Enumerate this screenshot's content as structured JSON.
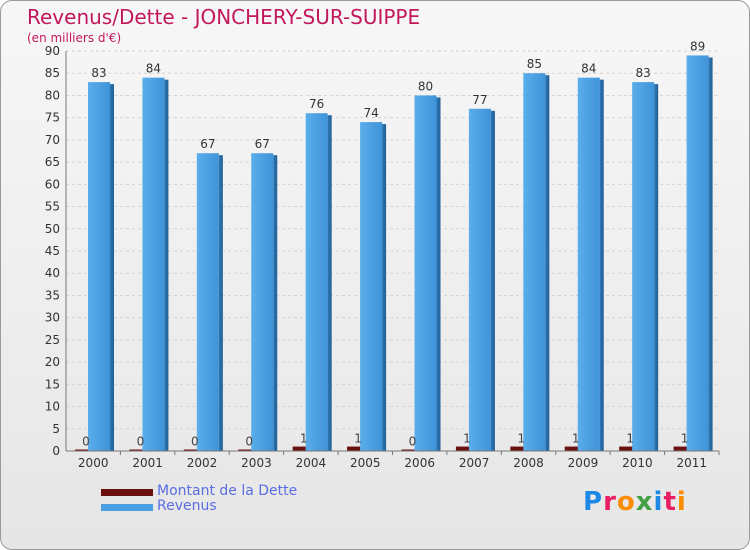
{
  "title": "Revenus/Dette - JONCHERY-SUR-SUIPPE",
  "unit": "(en milliers d'€)",
  "legend": [
    {
      "label": "Montant de la Dette",
      "color": "#6b0f0f"
    },
    {
      "label": "Revenus",
      "color": "#4a9fe0"
    }
  ],
  "logo": {
    "text": "Proxiti",
    "colors": [
      "#1e88e5",
      "#e91e63",
      "#fb8c00",
      "#43a047",
      "#1e88e5",
      "#e91e63",
      "#fb8c00"
    ]
  },
  "chart_data": {
    "type": "bar",
    "categories": [
      "2000",
      "2001",
      "2002",
      "2003",
      "2004",
      "2005",
      "2006",
      "2007",
      "2008",
      "2009",
      "2010",
      "2011"
    ],
    "series": [
      {
        "name": "Montant de la Dette",
        "color": "#6b0f0f",
        "values": [
          0,
          0,
          0,
          0,
          1,
          1,
          0,
          1,
          1,
          1,
          1,
          1
        ]
      },
      {
        "name": "Revenus",
        "color": "#4a9fe0",
        "values": [
          83,
          84,
          67,
          67,
          76,
          74,
          80,
          77,
          85,
          84,
          83,
          89
        ]
      }
    ],
    "ylim": [
      0,
      90
    ],
    "yticks": [
      0,
      5,
      10,
      15,
      20,
      25,
      30,
      35,
      40,
      45,
      50,
      55,
      60,
      65,
      70,
      75,
      80,
      85,
      90
    ],
    "grid": true,
    "legend_position": "bottom-left"
  }
}
